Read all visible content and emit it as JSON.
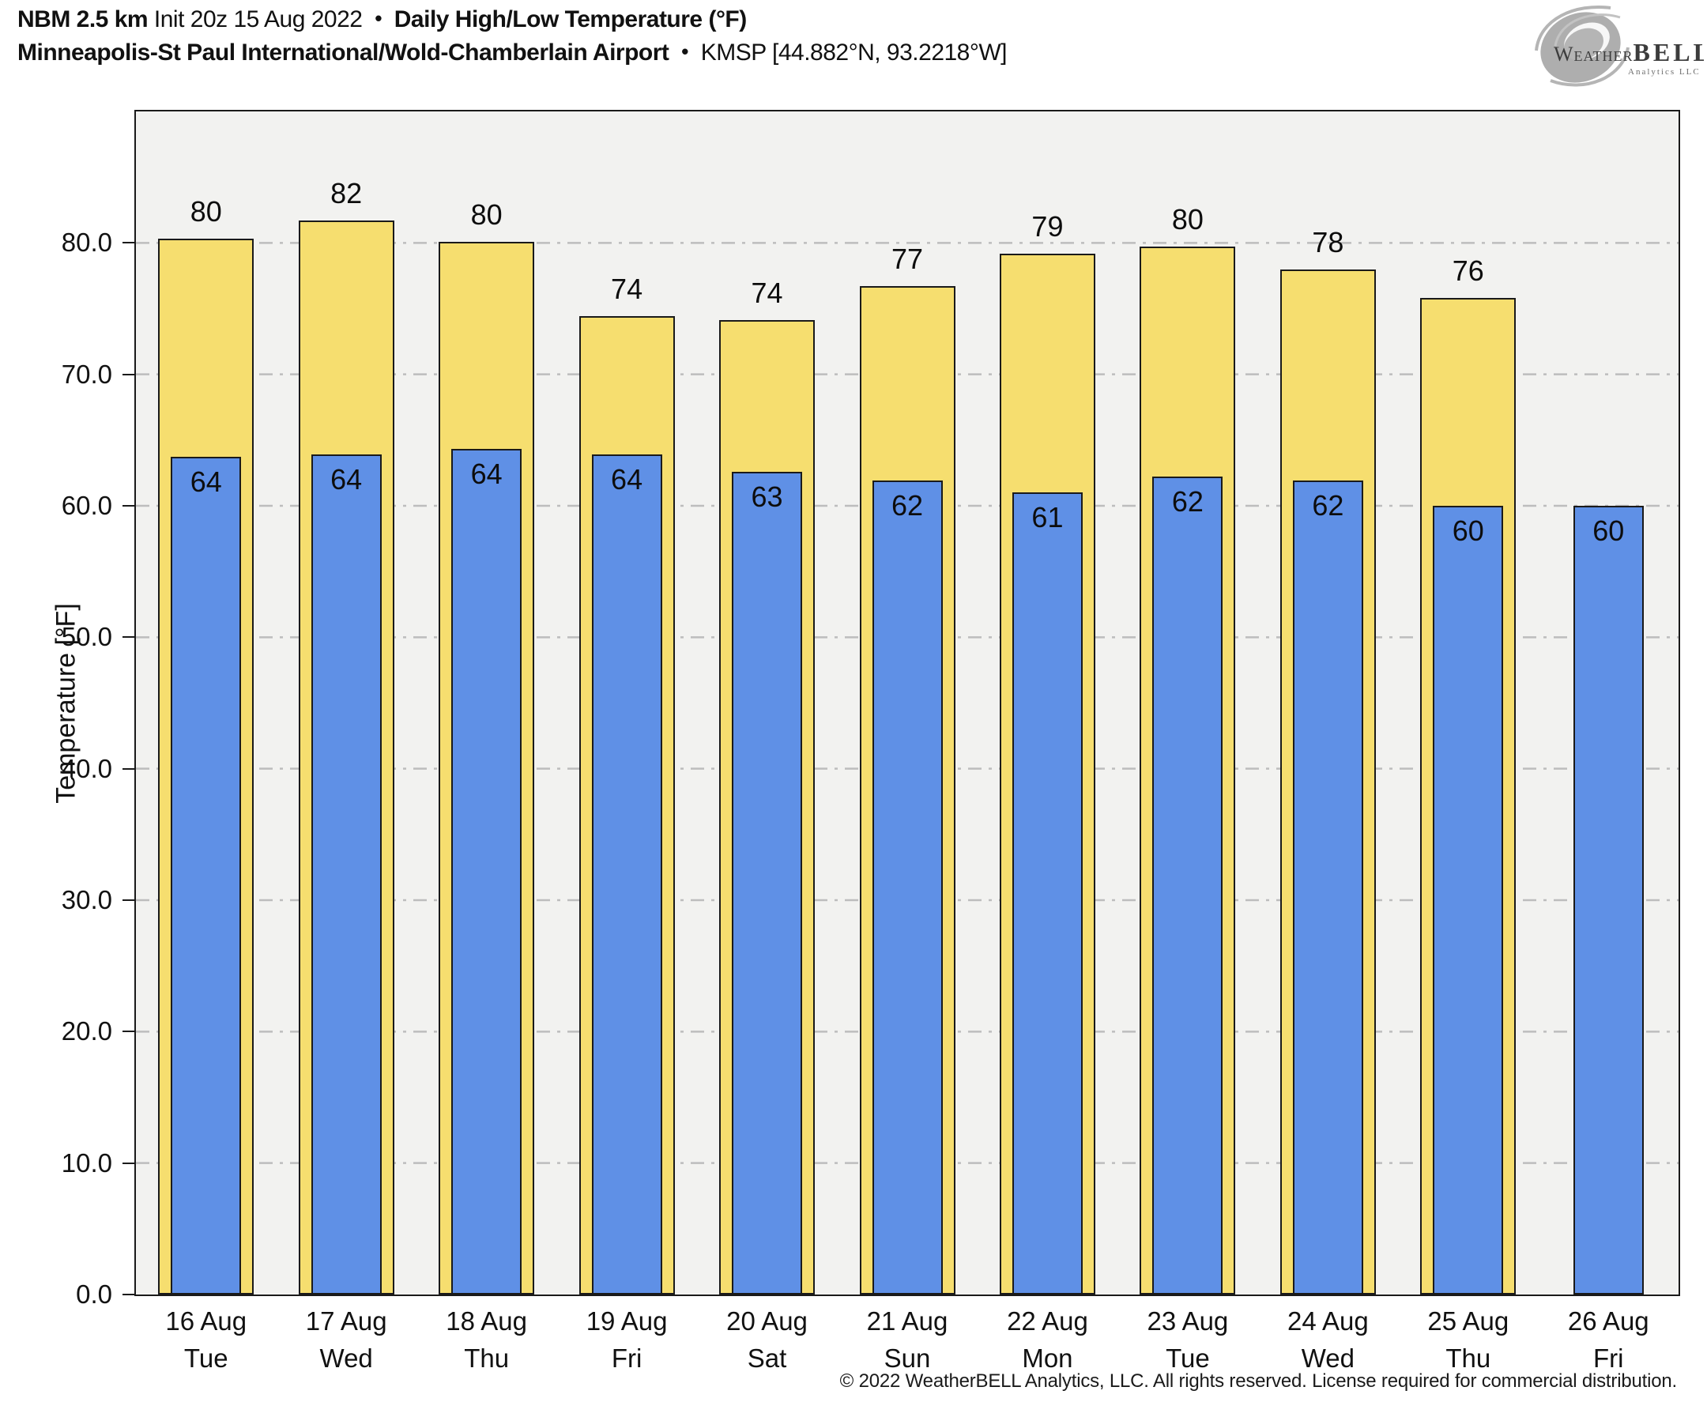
{
  "header": {
    "model": "NBM 2.5 km",
    "init": "Init 20z 15 Aug 2022",
    "sep": "•",
    "product": "Daily High/Low Temperature (°F)",
    "station": "Minneapolis-St Paul International/Wold-Chamberlain Airport",
    "station_id": "KMSP [44.882°N, 93.2218°W]"
  },
  "logo": {
    "name": "weatherbell-logo",
    "word_weather": "Weather",
    "word_bell": "BELL",
    "word_sub": "Analytics LLC"
  },
  "footer": {
    "copyright": "© 2022 WeatherBELL Analytics, LLC. All rights reserved. License required for commercial distribution."
  },
  "colors": {
    "high_bar": "#f6de6f",
    "low_bar": "#5f90e6",
    "bar_outline": "#1a1a1a",
    "plot_bg": "#f2f2f0",
    "grid": "#bdbdbd",
    "logo_gray": "#a9a9a9"
  },
  "chart_data": {
    "type": "bar",
    "title": "Daily High/Low Temperature (°F)",
    "subtitle": "Minneapolis-St Paul International/Wold-Chamberlain Airport • KMSP [44.882°N, 93.2218°W]",
    "ylabel": "Temperature [°F]",
    "ylim": [
      0,
      90
    ],
    "yticks": [
      0,
      10,
      20,
      30,
      40,
      50,
      60,
      70,
      80
    ],
    "ytick_labels": [
      "0.0",
      "10.0",
      "20.0",
      "30.0",
      "40.0",
      "50.0",
      "60.0",
      "70.0",
      "80.0"
    ],
    "grid": "horizontal dash-dot, behind bars",
    "legend_position": "none",
    "categories": [
      {
        "date": "16 Aug",
        "day": "Tue"
      },
      {
        "date": "17 Aug",
        "day": "Wed"
      },
      {
        "date": "18 Aug",
        "day": "Thu"
      },
      {
        "date": "19 Aug",
        "day": "Fri"
      },
      {
        "date": "20 Aug",
        "day": "Sat"
      },
      {
        "date": "21 Aug",
        "day": "Sun"
      },
      {
        "date": "22 Aug",
        "day": "Mon"
      },
      {
        "date": "23 Aug",
        "day": "Tue"
      },
      {
        "date": "24 Aug",
        "day": "Wed"
      },
      {
        "date": "25 Aug",
        "day": "Thu"
      },
      {
        "date": "26 Aug",
        "day": "Fri"
      }
    ],
    "series": [
      {
        "name": "Daily High",
        "color": "#f6de6f",
        "values": [
          80,
          82,
          80,
          74,
          74,
          77,
          79,
          80,
          78,
          76,
          null
        ],
        "bar_top_f": [
          80.3,
          81.7,
          80.1,
          74.4,
          74.1,
          76.7,
          79.2,
          79.7,
          78.0,
          75.8,
          null
        ]
      },
      {
        "name": "Daily Low",
        "color": "#5f90e6",
        "values": [
          64,
          64,
          64,
          64,
          63,
          62,
          61,
          62,
          62,
          60,
          60
        ],
        "bar_top_f": [
          63.7,
          63.9,
          64.3,
          63.9,
          62.6,
          61.9,
          61.0,
          62.2,
          61.9,
          60.0,
          60.0
        ]
      }
    ]
  }
}
